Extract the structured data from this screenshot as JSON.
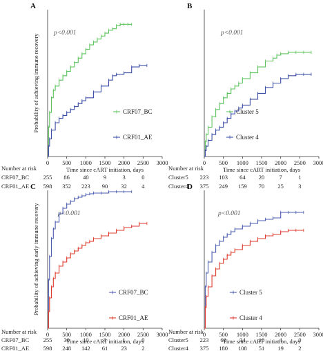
{
  "chart_data": [
    {
      "panel_label": "A",
      "type": "line",
      "ylabel": "Probability of achieving immune recovery",
      "xlabel": "Time since cART initiation, days",
      "xlim": [
        0,
        3000
      ],
      "ylim": [
        0,
        1
      ],
      "x_ticks": [
        0,
        500,
        1000,
        1500,
        2000,
        2500,
        3000
      ],
      "annotation": "p<0.001",
      "legend_position": "right",
      "series": [
        {
          "name": "CRF07_BC",
          "color": "#5cc35c",
          "x": [
            0,
            25,
            50,
            100,
            150,
            200,
            300,
            400,
            500,
            600,
            700,
            800,
            900,
            1000,
            1100,
            1200,
            1300,
            1400,
            1500,
            1600,
            1700,
            1800,
            1900,
            2000,
            2100,
            2200
          ],
          "y": [
            0,
            0.2,
            0.3,
            0.4,
            0.45,
            0.48,
            0.52,
            0.55,
            0.58,
            0.61,
            0.64,
            0.67,
            0.7,
            0.73,
            0.76,
            0.78,
            0.8,
            0.82,
            0.84,
            0.86,
            0.87,
            0.89,
            0.9,
            0.9,
            0.9,
            0.9
          ]
        },
        {
          "name": "CRF01_AE",
          "color": "#3b4ea6",
          "x": [
            0,
            25,
            50,
            100,
            200,
            300,
            400,
            500,
            600,
            700,
            800,
            900,
            1000,
            1200,
            1400,
            1600,
            1700,
            1800,
            2000,
            2200,
            2400,
            2600
          ],
          "y": [
            0,
            0.07,
            0.12,
            0.18,
            0.23,
            0.26,
            0.28,
            0.3,
            0.32,
            0.34,
            0.36,
            0.38,
            0.4,
            0.44,
            0.48,
            0.52,
            0.55,
            0.56,
            0.57,
            0.61,
            0.62,
            0.62
          ]
        }
      ],
      "risk_table": {
        "title": "Number at risk",
        "rows": [
          {
            "label": "CRF07_BC",
            "values": [
              "255",
              "86",
              "40",
              "9",
              "3",
              "0"
            ]
          },
          {
            "label": "CRF01_AE",
            "values": [
              "598",
              "352",
              "223",
              "90",
              "32",
              "4"
            ]
          }
        ]
      }
    },
    {
      "panel_label": "B",
      "type": "line",
      "ylabel": "",
      "xlabel": "Time since cART initiation, days",
      "xlim": [
        0,
        3000
      ],
      "ylim": [
        0,
        1
      ],
      "x_ticks": [
        0,
        500,
        1000,
        1500,
        2000,
        2500,
        3000
      ],
      "annotation": "p<0.001",
      "legend_position": "right",
      "series": [
        {
          "name": "Cluster 5",
          "color": "#5cc35c",
          "x": [
            0,
            25,
            50,
            100,
            200,
            300,
            400,
            500,
            600,
            700,
            800,
            900,
            1000,
            1200,
            1400,
            1600,
            1800,
            1900,
            2000,
            2200,
            2400,
            2600,
            2800
          ],
          "y": [
            0,
            0.1,
            0.15,
            0.2,
            0.27,
            0.32,
            0.36,
            0.4,
            0.43,
            0.46,
            0.48,
            0.5,
            0.53,
            0.57,
            0.61,
            0.65,
            0.67,
            0.69,
            0.7,
            0.71,
            0.71,
            0.71,
            0.71
          ]
        },
        {
          "name": "Cluster 4",
          "color": "#3b4ea6",
          "x": [
            0,
            25,
            50,
            100,
            200,
            300,
            400,
            500,
            600,
            700,
            800,
            900,
            1000,
            1200,
            1400,
            1600,
            1800,
            2000,
            2200,
            2400,
            2600,
            2800
          ],
          "y": [
            0,
            0.04,
            0.07,
            0.11,
            0.15,
            0.18,
            0.2,
            0.23,
            0.26,
            0.29,
            0.31,
            0.33,
            0.35,
            0.39,
            0.43,
            0.47,
            0.5,
            0.53,
            0.55,
            0.56,
            0.56,
            0.56
          ]
        }
      ],
      "risk_table": {
        "title": "Number at risk",
        "rows": [
          {
            "label": "Cluster5",
            "values": [
              "223",
              "103",
              "64",
              "20",
              "7",
              "1"
            ]
          },
          {
            "label": "Cluster4",
            "values": [
              "375",
              "249",
              "159",
              "70",
              "25",
              "3"
            ]
          }
        ]
      }
    },
    {
      "panel_label": "C",
      "type": "line",
      "ylabel": "Probability of achieving early immune recovery",
      "xlabel": "Time since cART initiation, days",
      "xlim": [
        0,
        3000
      ],
      "ylim": [
        0,
        1
      ],
      "x_ticks": [
        0,
        500,
        1000,
        1500,
        2000,
        2500,
        3000
      ],
      "annotation": "p<0.001",
      "legend_position": "right",
      "series": [
        {
          "name": "CRF07_BC",
          "color": "#4a5bb0",
          "x": [
            0,
            25,
            50,
            100,
            150,
            200,
            300,
            400,
            500,
            600,
            700,
            800,
            900,
            1000,
            1100,
            1200,
            1400,
            1600,
            1800,
            2000,
            2200
          ],
          "y": [
            0,
            0.35,
            0.52,
            0.65,
            0.72,
            0.77,
            0.83,
            0.87,
            0.9,
            0.92,
            0.94,
            0.95,
            0.96,
            0.97,
            0.975,
            0.98,
            0.98,
            0.99,
            0.99,
            0.99,
            0.99
          ]
        },
        {
          "name": "CRF01_AE",
          "color": "#dd3a2b",
          "x": [
            0,
            25,
            50,
            100,
            150,
            200,
            300,
            400,
            500,
            600,
            700,
            800,
            900,
            1000,
            1100,
            1200,
            1400,
            1600,
            1800,
            2000,
            2200,
            2400,
            2600
          ],
          "y": [
            0,
            0.12,
            0.22,
            0.3,
            0.36,
            0.4,
            0.45,
            0.48,
            0.51,
            0.54,
            0.56,
            0.58,
            0.6,
            0.62,
            0.63,
            0.65,
            0.67,
            0.69,
            0.71,
            0.73,
            0.74,
            0.76,
            0.76
          ]
        }
      ],
      "risk_table": {
        "title": "Number at risk",
        "rows": [
          {
            "label": "CRF07_BC",
            "values": [
              "255",
              "30",
              "10",
              "3",
              "1",
              "0"
            ]
          },
          {
            "label": "CRF01_AE",
            "values": [
              "598",
              "248",
              "142",
              "61",
              "23",
              "2"
            ]
          }
        ]
      }
    },
    {
      "panel_label": "D",
      "type": "line",
      "ylabel": "",
      "xlabel": "Time since cART initiation, days",
      "xlim": [
        0,
        3000
      ],
      "ylim": [
        0,
        1
      ],
      "x_ticks": [
        0,
        500,
        1000,
        1500,
        2000,
        2500,
        3000
      ],
      "annotation": "p<0.001",
      "legend_position": "right",
      "series": [
        {
          "name": "Cluster 5",
          "color": "#4a5bb0",
          "x": [
            0,
            25,
            50,
            100,
            200,
            300,
            400,
            500,
            600,
            700,
            800,
            1000,
            1200,
            1400,
            1600,
            1800,
            2000,
            2200,
            2400,
            2600
          ],
          "y": [
            0,
            0.3,
            0.4,
            0.48,
            0.55,
            0.6,
            0.63,
            0.66,
            0.68,
            0.7,
            0.72,
            0.74,
            0.76,
            0.78,
            0.79,
            0.8,
            0.84,
            0.84,
            0.84,
            0.84
          ]
        },
        {
          "name": "Cluster 4",
          "color": "#dd3a2b",
          "x": [
            0,
            25,
            50,
            100,
            200,
            300,
            400,
            500,
            600,
            700,
            800,
            1000,
            1200,
            1400,
            1600,
            1800,
            2000,
            2200,
            2400,
            2600
          ],
          "y": [
            0,
            0.15,
            0.23,
            0.3,
            0.38,
            0.43,
            0.47,
            0.5,
            0.53,
            0.55,
            0.57,
            0.6,
            0.63,
            0.65,
            0.67,
            0.68,
            0.7,
            0.71,
            0.71,
            0.71
          ]
        }
      ],
      "risk_table": {
        "title": "Number at risk",
        "rows": [
          {
            "label": "Cluster5",
            "values": [
              "223",
              "68",
              "34",
              "10",
              "4",
              "0"
            ]
          },
          {
            "label": "Cluster4",
            "values": [
              "375",
              "180",
              "108",
              "51",
              "19",
              "2"
            ]
          }
        ]
      }
    }
  ]
}
